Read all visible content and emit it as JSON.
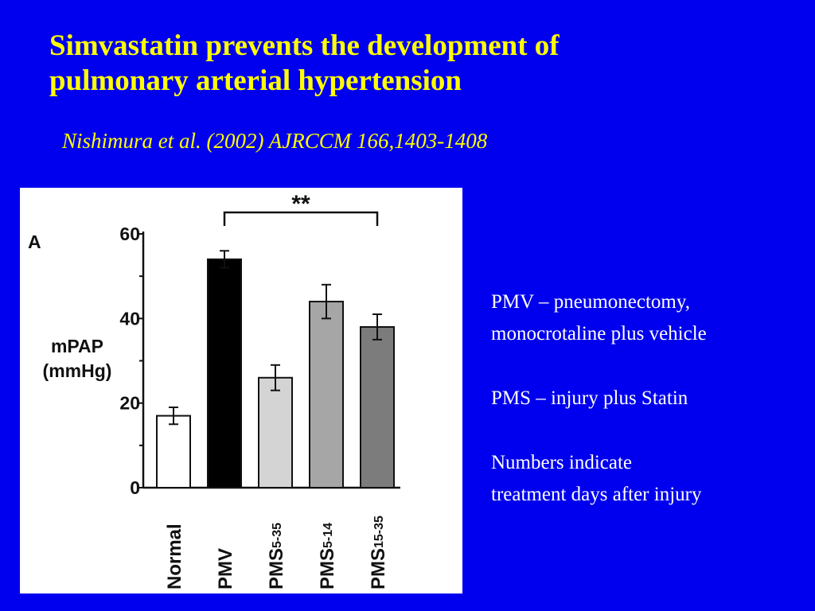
{
  "slide": {
    "title_line1": "Simvastatin prevents the development of",
    "title_line2": "pulmonary arterial hypertension",
    "citation": "Nishimura et al. (2002) AJRCCM 166,1403-1408"
  },
  "notes": [
    "PMV – pneumonectomy,\nmonocrotaline plus vehicle",
    "PMS – injury plus Statin",
    "Numbers indicate\ntreatment days after injury"
  ],
  "chart_data": {
    "type": "bar",
    "panel_label": "A",
    "ylabel_line1": "mPAP",
    "ylabel_line2": "(mmHg)",
    "ylim": [
      0,
      60
    ],
    "yticks": [
      0,
      20,
      40,
      60
    ],
    "grid": false,
    "significance_label": "**",
    "categories": [
      {
        "base": "Normal",
        "sub": ""
      },
      {
        "base": "PMV",
        "sub": ""
      },
      {
        "base": "PMS",
        "sub": "5-35"
      },
      {
        "base": "PMS",
        "sub": "5-14"
      },
      {
        "base": "PMS",
        "sub": "15-35"
      }
    ],
    "values": [
      17,
      54,
      26,
      44,
      38
    ],
    "errors": [
      2,
      2,
      3,
      4,
      3
    ],
    "bar_colors": [
      "#ffffff",
      "#000000",
      "#d4d4d4",
      "#a6a6a6",
      "#7c7c7c"
    ]
  }
}
